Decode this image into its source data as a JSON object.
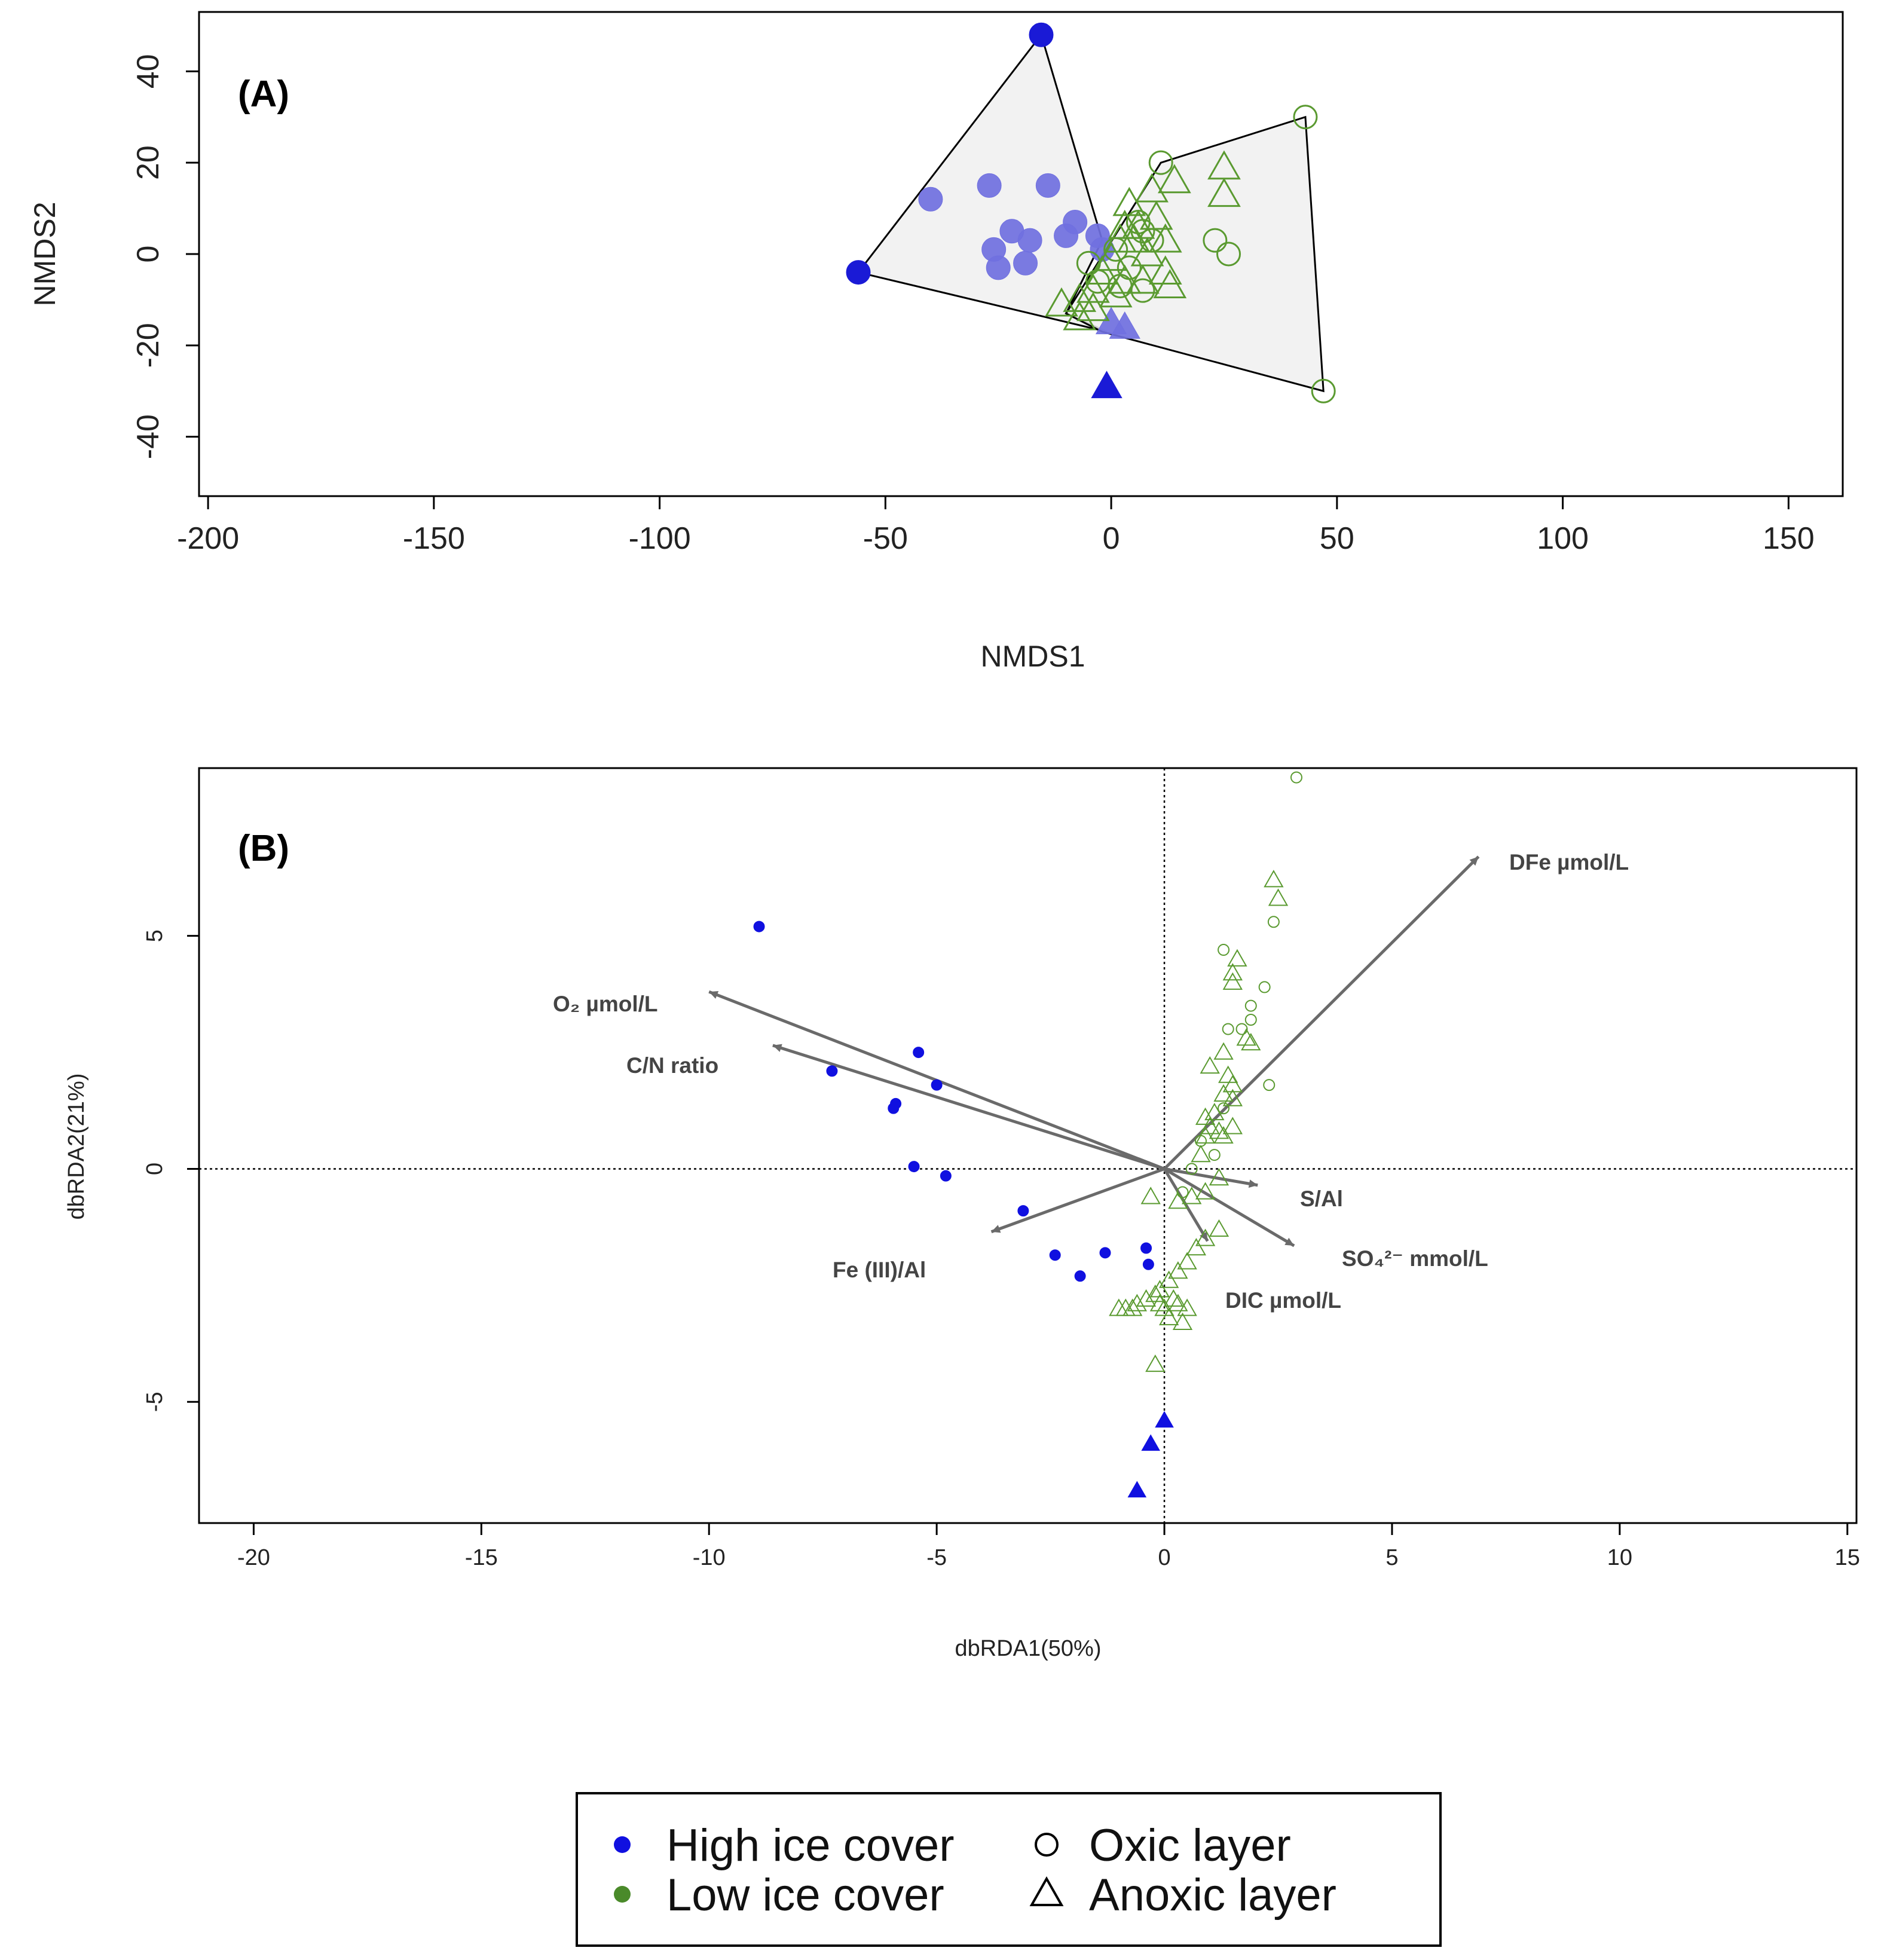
{
  "colors": {
    "high_ice_A": "#7070e0",
    "high_ice_A_extreme": "#1a1ad6",
    "high_ice_B": "#1010e0",
    "low_ice": "#5a9a30",
    "hull_fill": "#f0f0f0",
    "hull_stroke": "#000000",
    "arrow": "#6a6a6a"
  },
  "legend": {
    "items": [
      {
        "label": "High ice cover",
        "marker": "filled-circle",
        "color": "#1010e0"
      },
      {
        "label": "Low ice cover",
        "marker": "filled-circle",
        "color": "#4a8a2a"
      },
      {
        "label": "Oxic layer",
        "marker": "open-circle",
        "color": "#000000"
      },
      {
        "label": "Anoxic layer",
        "marker": "open-triangle",
        "color": "#000000"
      }
    ]
  },
  "chart_data": [
    {
      "id": "A",
      "type": "scatter",
      "panel_label": "(A)",
      "xlabel": "NMDS1",
      "ylabel": "NMDS2",
      "xlim": [
        -202,
        162
      ],
      "ylim": [
        -53,
        53
      ],
      "xticks": [
        -200,
        -150,
        -100,
        -50,
        0,
        50,
        100,
        150
      ],
      "yticks": [
        -40,
        -20,
        0,
        20,
        40
      ],
      "hulls": [
        {
          "group": "High ice cover",
          "points": [
            [
              -15.5,
              48
            ],
            [
              -2,
              3
            ],
            [
              -10,
              -13
            ],
            [
              -1,
              -17
            ],
            [
              -56,
              -4
            ]
          ]
        },
        {
          "group": "Low ice cover",
          "points": [
            [
              11,
              20
            ],
            [
              43,
              30
            ],
            [
              47,
              -30
            ],
            [
              -2,
              -17
            ],
            [
              -10,
              -13
            ]
          ]
        }
      ],
      "series": [
        {
          "name": "High ice cover - Oxic layer",
          "marker": "circle",
          "filled": true,
          "color": "#7070e0",
          "points": [
            [
              -40,
              12
            ],
            [
              -27,
              15
            ],
            [
              -14,
              15
            ],
            [
              -22,
              5
            ],
            [
              -26,
              1
            ],
            [
              -18,
              3
            ],
            [
              -25,
              -3
            ],
            [
              -19,
              -2
            ],
            [
              -10,
              4
            ],
            [
              -8,
              7
            ],
            [
              -3,
              4
            ],
            [
              -2,
              1
            ]
          ]
        },
        {
          "name": "High ice cover - Oxic layer (extreme)",
          "marker": "circle",
          "filled": true,
          "color": "#1a1ad6",
          "points": [
            [
              -15.5,
              48
            ],
            [
              -56,
              -4
            ]
          ]
        },
        {
          "name": "High ice cover - Anoxic layer",
          "marker": "triangle",
          "filled": true,
          "color": "#7070e0",
          "points": [
            [
              0,
              -15
            ],
            [
              3,
              -16
            ]
          ]
        },
        {
          "name": "High ice cover - Anoxic layer (extreme)",
          "marker": "triangle",
          "filled": true,
          "color": "#1a1ad6",
          "points": [
            [
              -1,
              -29
            ]
          ]
        },
        {
          "name": "Low ice cover - Oxic layer",
          "marker": "circle",
          "filled": false,
          "color": "#5a9a30",
          "points": [
            [
              11,
              20
            ],
            [
              43,
              30
            ],
            [
              23,
              3
            ],
            [
              26,
              0
            ],
            [
              47,
              -30
            ],
            [
              7,
              5
            ],
            [
              9,
              3
            ],
            [
              4,
              -3
            ],
            [
              7,
              -8
            ],
            [
              -3,
              -6
            ],
            [
              1,
              1
            ],
            [
              6,
              7
            ],
            [
              -5,
              -2
            ],
            [
              2,
              -7
            ]
          ]
        },
        {
          "name": "Low ice cover - Anoxic layer",
          "marker": "triangle",
          "filled": false,
          "color": "#5a9a30",
          "points": [
            [
              25,
              19
            ],
            [
              25,
              13
            ],
            [
              14,
              16
            ],
            [
              9,
              14
            ],
            [
              4,
              11
            ],
            [
              6,
              6
            ],
            [
              12,
              3
            ],
            [
              8,
              0
            ],
            [
              2,
              3
            ],
            [
              0,
              -1
            ],
            [
              -2,
              -4
            ],
            [
              3,
              -6
            ],
            [
              -4,
              -8
            ],
            [
              -7,
              -10
            ],
            [
              -11,
              -11
            ],
            [
              -7,
              -14
            ],
            [
              -4,
              -12
            ],
            [
              13,
              -7
            ],
            [
              12,
              -4
            ],
            [
              7,
              -6
            ],
            [
              1,
              -9
            ],
            [
              3,
              6
            ],
            [
              5,
              3
            ],
            [
              10,
              8
            ]
          ]
        }
      ]
    },
    {
      "id": "B",
      "type": "scatter",
      "panel_label": "(B)",
      "xlabel": "dbRDA1(50%)",
      "ylabel": "dbRDA2(21%)",
      "xlim": [
        -21.2,
        15.2
      ],
      "ylim": [
        -7.6,
        8.6
      ],
      "xticks": [
        -20,
        -15,
        -10,
        -5,
        0,
        5,
        10,
        15
      ],
      "yticks": [
        -5,
        0,
        5
      ],
      "reference_lines": {
        "x": 0,
        "y": 0,
        "style": "dotted"
      },
      "series": [
        {
          "name": "High ice cover - Oxic layer",
          "marker": "circle",
          "filled": true,
          "color": "#1010e0",
          "points": [
            [
              -8.9,
              5.2
            ],
            [
              -5.4,
              2.5
            ],
            [
              -5.0,
              1.8
            ],
            [
              -7.3,
              2.1
            ],
            [
              -5.9,
              1.4
            ],
            [
              -5.95,
              1.3
            ],
            [
              -5.5,
              0.05
            ],
            [
              -4.8,
              -0.15
            ],
            [
              -3.1,
              -0.9
            ],
            [
              -2.4,
              -1.85
            ],
            [
              -1.3,
              -1.8
            ],
            [
              -1.85,
              -2.3
            ],
            [
              -0.4,
              -1.7
            ],
            [
              -0.35,
              -2.05
            ]
          ]
        },
        {
          "name": "High ice cover - Anoxic layer",
          "marker": "triangle",
          "filled": true,
          "color": "#1010e0",
          "points": [
            [
              0,
              -5.4
            ],
            [
              -0.3,
              -5.9
            ],
            [
              -0.6,
              -6.9
            ]
          ]
        },
        {
          "name": "Low ice cover - Oxic layer",
          "marker": "circle",
          "filled": false,
          "color": "#5a9a30",
          "points": [
            [
              2.9,
              8.4
            ],
            [
              2.4,
              5.3
            ],
            [
              1.3,
              4.7
            ],
            [
              2.2,
              3.9
            ],
            [
              1.9,
              3.5
            ],
            [
              1.9,
              3.2
            ],
            [
              1.7,
              3.0
            ],
            [
              1.4,
              3.0
            ],
            [
              2.3,
              1.8
            ],
            [
              1.3,
              1.3
            ],
            [
              0.8,
              0.6
            ],
            [
              1.1,
              0.3
            ],
            [
              0.6,
              0.0
            ],
            [
              0.4,
              -0.5
            ]
          ]
        },
        {
          "name": "Low ice cover - Anoxic layer",
          "marker": "triangle",
          "filled": false,
          "color": "#5a9a30",
          "points": [
            [
              2.4,
              6.2
            ],
            [
              2.5,
              5.8
            ],
            [
              1.6,
              4.5
            ],
            [
              1.5,
              4.2
            ],
            [
              1.5,
              4.0
            ],
            [
              1.8,
              2.8
            ],
            [
              1.9,
              2.7
            ],
            [
              1.3,
              2.5
            ],
            [
              1.0,
              2.2
            ],
            [
              1.4,
              2.0
            ],
            [
              1.5,
              1.8
            ],
            [
              1.3,
              1.6
            ],
            [
              1.5,
              1.5
            ],
            [
              1.1,
              1.2
            ],
            [
              0.9,
              1.1
            ],
            [
              1.5,
              0.9
            ],
            [
              1.2,
              0.8
            ],
            [
              0.9,
              0.7
            ],
            [
              1.3,
              0.7
            ],
            [
              1.0,
              0.9
            ],
            [
              0.8,
              0.3
            ],
            [
              1.2,
              -0.2
            ],
            [
              0.9,
              -0.5
            ],
            [
              0.6,
              -0.6
            ],
            [
              0.3,
              -0.7
            ],
            [
              1.2,
              -1.3
            ],
            [
              0.9,
              -1.5
            ],
            [
              0.7,
              -1.7
            ],
            [
              0.5,
              -2.0
            ],
            [
              0.3,
              -2.2
            ],
            [
              0.1,
              -2.4
            ],
            [
              -0.1,
              -2.6
            ],
            [
              -0.4,
              -2.8
            ],
            [
              -0.6,
              -2.9
            ],
            [
              -0.7,
              -3.0
            ],
            [
              -0.85,
              -3.0
            ],
            [
              -1.0,
              -3.0
            ],
            [
              -0.1,
              -2.9
            ],
            [
              0.3,
              -2.9
            ],
            [
              0.0,
              -3.0
            ],
            [
              0.4,
              -3.3
            ],
            [
              0.2,
              -2.8
            ],
            [
              -0.2,
              -2.7
            ],
            [
              0.1,
              -3.2
            ],
            [
              0.5,
              -3.0
            ],
            [
              -0.2,
              -4.2
            ],
            [
              -0.3,
              -0.6
            ]
          ]
        }
      ],
      "vectors": [
        {
          "label": "O₂ µmol/L",
          "end": [
            -10.0,
            3.8
          ]
        },
        {
          "label": "C/N ratio",
          "end": [
            -8.6,
            2.65
          ]
        },
        {
          "label": "Fe (III)/Al",
          "end": [
            -3.8,
            -1.35
          ]
        },
        {
          "label": "DFe µmol/L",
          "end": [
            6.9,
            6.7
          ]
        },
        {
          "label": "S/Al",
          "end": [
            2.05,
            -0.35
          ]
        },
        {
          "label": "SO₄²⁻ mmol/L",
          "end": [
            2.85,
            -1.65
          ]
        },
        {
          "label": "DIC µmol/L",
          "end": [
            0.95,
            -1.55
          ]
        }
      ]
    }
  ]
}
